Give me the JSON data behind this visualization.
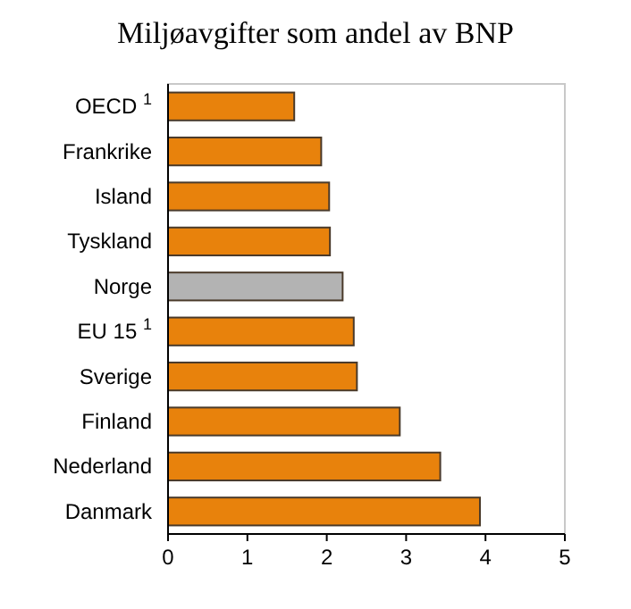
{
  "chart_data": {
    "type": "bar",
    "orientation": "horizontal",
    "title": "Miljøavgifter som andel av BNP",
    "categories": [
      "OECD $^{1}$",
      "Frankrike",
      "Island",
      "Tyskland",
      "Norge",
      "EU 15 $^{1}$",
      "Sverige",
      "Finland",
      "Nederland",
      "Danmark"
    ],
    "values": [
      1.59,
      1.93,
      2.03,
      2.04,
      2.2,
      2.34,
      2.38,
      2.92,
      3.43,
      3.93
    ],
    "colors": [
      "#e8820c",
      "#e8820c",
      "#e8820c",
      "#e8820c",
      "#b3b3b3",
      "#e8820c",
      "#e8820c",
      "#e8820c",
      "#e8820c",
      "#e8820c"
    ],
    "xlim": [
      0,
      5
    ],
    "xticks": [
      0,
      1,
      2,
      3,
      4,
      5
    ]
  }
}
